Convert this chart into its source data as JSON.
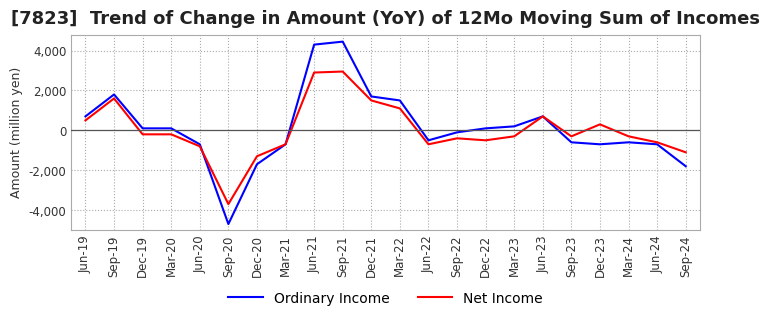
{
  "title": "[7823]  Trend of Change in Amount (YoY) of 12Mo Moving Sum of Incomes",
  "ylabel": "Amount (million yen)",
  "ylim": [
    -5000,
    4800
  ],
  "yticks": [
    -4000,
    -2000,
    0,
    2000,
    4000
  ],
  "x_labels": [
    "Jun-19",
    "Sep-19",
    "Dec-19",
    "Mar-20",
    "Jun-20",
    "Sep-20",
    "Dec-20",
    "Mar-21",
    "Jun-21",
    "Sep-21",
    "Dec-21",
    "Mar-22",
    "Jun-22",
    "Sep-22",
    "Dec-22",
    "Mar-23",
    "Jun-23",
    "Sep-23",
    "Dec-23",
    "Mar-24",
    "Jun-24",
    "Sep-24"
  ],
  "ordinary_income": [
    700,
    1800,
    100,
    100,
    -700,
    -4700,
    -1700,
    -700,
    4300,
    4450,
    1700,
    1500,
    -500,
    -100,
    100,
    200,
    700,
    -600,
    -700,
    -600,
    -700,
    -1800
  ],
  "net_income": [
    500,
    1600,
    -200,
    -200,
    -800,
    -3700,
    -1300,
    -700,
    2900,
    2950,
    1500,
    1100,
    -700,
    -400,
    -500,
    -300,
    700,
    -300,
    300,
    -300,
    -600,
    -1100
  ],
  "ordinary_color": "#0000FF",
  "net_color": "#FF0000",
  "background_color": "#FFFFFF",
  "grid_color": "#AAAAAA",
  "title_fontsize": 13,
  "label_fontsize": 9,
  "tick_fontsize": 8.5
}
